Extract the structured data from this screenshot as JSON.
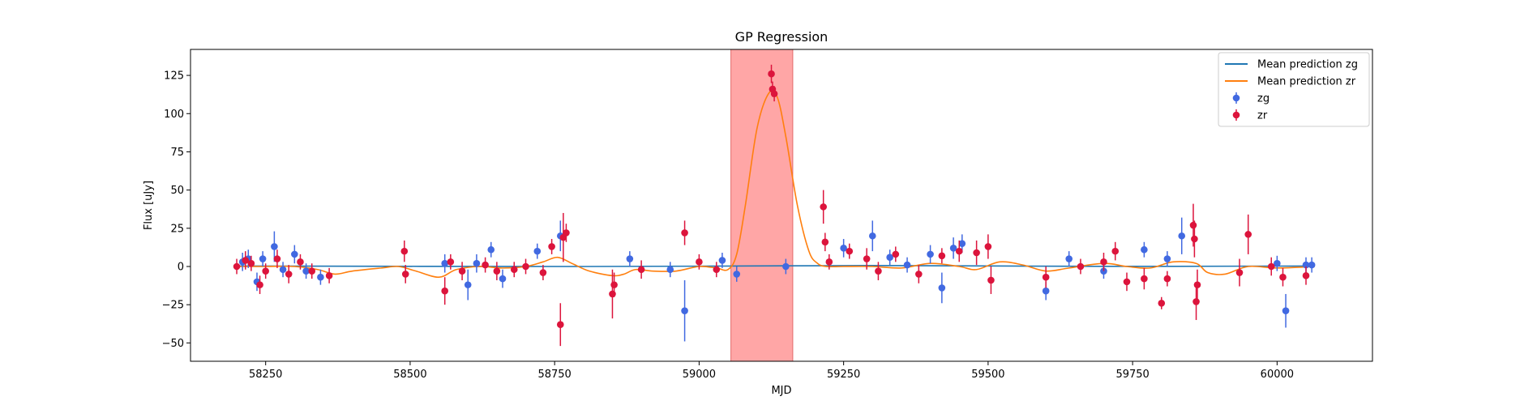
{
  "chart_data": {
    "type": "scatter",
    "title": "GP Regression",
    "xlabel": "MJD",
    "ylabel": "Flux [uJy]",
    "xlim": [
      58120,
      60165
    ],
    "ylim": [
      -62,
      142
    ],
    "xticks": [
      58250,
      58500,
      58750,
      59000,
      59250,
      59500,
      59750,
      60000
    ],
    "yticks": [
      -50,
      -25,
      0,
      25,
      50,
      75,
      100,
      125
    ],
    "legend_position": "top-right",
    "highlight_band": {
      "x": [
        59055,
        59162
      ],
      "color": "#ff8080"
    },
    "lines": [
      {
        "name": "Mean prediction zg",
        "color": "#1f77b4",
        "x": [
          58200,
          58800,
          59060,
          59300,
          59700,
          60065
        ],
        "y": [
          0.3,
          0.0,
          0.3,
          0.6,
          0.1,
          0.3
        ]
      },
      {
        "name": "Mean prediction zr",
        "color": "#ff7f0e",
        "x": [
          58200,
          58250,
          58300,
          58340,
          58370,
          58400,
          58450,
          58480,
          58510,
          58550,
          58580,
          58620,
          58660,
          58700,
          58730,
          58755,
          58780,
          58810,
          58850,
          58870,
          58890,
          58920,
          58960,
          59000,
          59030,
          59050,
          59065,
          59080,
          59100,
          59120,
          59135,
          59150,
          59170,
          59190,
          59205,
          59220,
          59250,
          59300,
          59350,
          59400,
          59450,
          59480,
          59520,
          59560,
          59600,
          59640,
          59700,
          59740,
          59780,
          59820,
          59860,
          59880,
          59910,
          59950,
          60000,
          60065
        ],
        "y": [
          0,
          0,
          0,
          -2,
          -5,
          -3,
          -1,
          0,
          -3,
          -7,
          -2,
          0,
          -1,
          0,
          3,
          6,
          2,
          -3,
          -6,
          -5,
          -2,
          -3,
          -3,
          0,
          -1,
          -2,
          8,
          40,
          90,
          113,
          111,
          85,
          40,
          10,
          2,
          0,
          0,
          0,
          -1,
          2,
          0,
          -2,
          3,
          1,
          -3,
          -1,
          2,
          0,
          -1,
          3,
          2,
          -4,
          -5,
          0,
          -1,
          0
        ]
      }
    ],
    "series": [
      {
        "name": "zg",
        "color": "#4169e1",
        "x": [
          58210,
          58220,
          58235,
          58245,
          58265,
          58280,
          58300,
          58320,
          58345,
          58560,
          58600,
          58615,
          58640,
          58660,
          58720,
          58760,
          58880,
          58950,
          58975,
          59040,
          59065,
          59150,
          59250,
          59300,
          59330,
          59360,
          59400,
          59420,
          59440,
          59455,
          59600,
          59640,
          59700,
          59770,
          59810,
          59835,
          60000,
          60015,
          60050,
          60060
        ],
        "y": [
          3,
          5,
          -10,
          5,
          13,
          -2,
          8,
          -3,
          -7,
          2,
          -12,
          2,
          11,
          -8,
          10,
          20,
          5,
          -2,
          -29,
          4,
          -5,
          0,
          12,
          20,
          6,
          1,
          8,
          -14,
          12,
          15,
          -16,
          5,
          -3,
          11,
          5,
          20,
          2,
          -29,
          1,
          1
        ],
        "err": [
          6,
          6,
          6,
          5,
          10,
          5,
          6,
          5,
          5,
          6,
          10,
          6,
          5,
          6,
          5,
          10,
          5,
          5,
          20,
          5,
          5,
          5,
          6,
          10,
          5,
          5,
          6,
          10,
          7,
          6,
          6,
          5,
          5,
          5,
          5,
          12,
          5,
          11,
          5,
          5
        ]
      },
      {
        "name": "zr",
        "color": "#dc143c",
        "x": [
          58200,
          58215,
          58225,
          58240,
          58250,
          58270,
          58290,
          58310,
          58330,
          58360,
          58490,
          58492,
          58560,
          58570,
          58590,
          58630,
          58650,
          58680,
          58700,
          58730,
          58745,
          58760,
          58765,
          58770,
          58850,
          58853,
          58900,
          58975,
          59000,
          59030,
          59125,
          59127,
          59130,
          59215,
          59218,
          59225,
          59260,
          59290,
          59310,
          59340,
          59380,
          59420,
          59450,
          59480,
          59500,
          59505,
          59600,
          59660,
          59700,
          59720,
          59740,
          59770,
          59800,
          59810,
          59855,
          59857,
          59860,
          59862,
          59935,
          59950,
          59990,
          60010,
          60050
        ],
        "y": [
          0,
          4,
          2,
          -12,
          -3,
          5,
          -5,
          3,
          -3,
          -6,
          10,
          -5,
          -16,
          3,
          -3,
          1,
          -3,
          -2,
          0,
          -4,
          13,
          -38,
          19,
          22,
          -18,
          -12,
          -2,
          22,
          3,
          -2,
          126,
          116,
          113,
          39,
          16,
          3,
          10,
          5,
          -3,
          8,
          -5,
          7,
          10,
          9,
          13,
          -9,
          -7,
          0,
          3,
          10,
          -10,
          -8,
          -24,
          -8,
          27,
          18,
          -23,
          -12,
          -4,
          21,
          0,
          -7,
          -6
        ],
        "err": [
          5,
          6,
          5,
          6,
          5,
          6,
          6,
          5,
          5,
          5,
          7,
          6,
          9,
          5,
          6,
          5,
          6,
          5,
          5,
          5,
          5,
          14,
          16,
          6,
          16,
          8,
          6,
          8,
          5,
          5,
          6,
          5,
          5,
          11,
          6,
          5,
          5,
          7,
          6,
          5,
          6,
          5,
          7,
          8,
          8,
          9,
          7,
          5,
          6,
          6,
          6,
          7,
          4,
          5,
          14,
          12,
          12,
          10,
          9,
          13,
          6,
          6,
          6
        ]
      }
    ]
  }
}
